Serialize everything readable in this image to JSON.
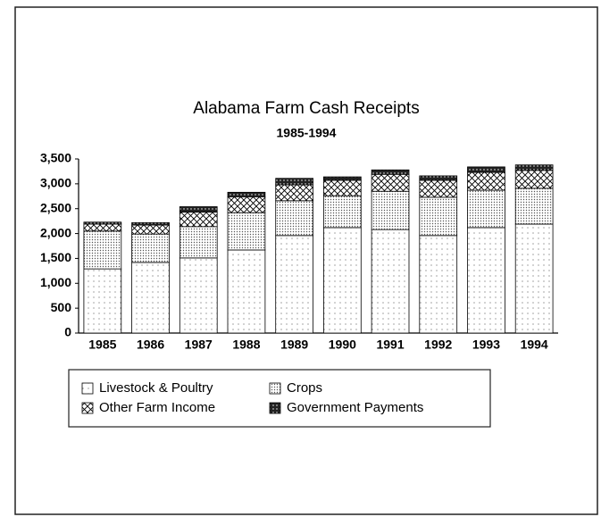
{
  "chart_data": {
    "type": "stacked_bar",
    "title": "Alabama Farm Cash Receipts",
    "subtitle": "1985-1994",
    "categories": [
      "1985",
      "1986",
      "1987",
      "1988",
      "1989",
      "1990",
      "1991",
      "1992",
      "1993",
      "1994"
    ],
    "series": [
      {
        "name": "Livestock & Poultry",
        "color": "#ffffff",
        "values": [
          1290,
          1420,
          1510,
          1670,
          1960,
          2120,
          2080,
          1960,
          2120,
          2190
        ]
      },
      {
        "name": "Crops",
        "color": "#dddddd",
        "values": [
          760,
          570,
          630,
          750,
          700,
          640,
          770,
          770,
          750,
          720
        ]
      },
      {
        "name": "Other Farm Income",
        "color": "#bbbbbb",
        "values": [
          140,
          180,
          290,
          320,
          320,
          310,
          340,
          340,
          360,
          360
        ]
      },
      {
        "name": "Government Payments",
        "color": "#222222",
        "values": [
          40,
          50,
          110,
          90,
          130,
          70,
          90,
          90,
          110,
          110
        ]
      }
    ],
    "ylim": [
      0,
      3500
    ],
    "yticks": [
      0,
      500,
      {
        "value": 1000,
        "label": "1,000"
      },
      {
        "value": 1500,
        "label": "1,500"
      },
      {
        "value": 2000,
        "label": "2,000"
      },
      {
        "value": 2500,
        "label": "2,500"
      },
      {
        "value": 3000,
        "label": "3,000"
      },
      {
        "value": 3500,
        "label": "3,500"
      }
    ]
  }
}
